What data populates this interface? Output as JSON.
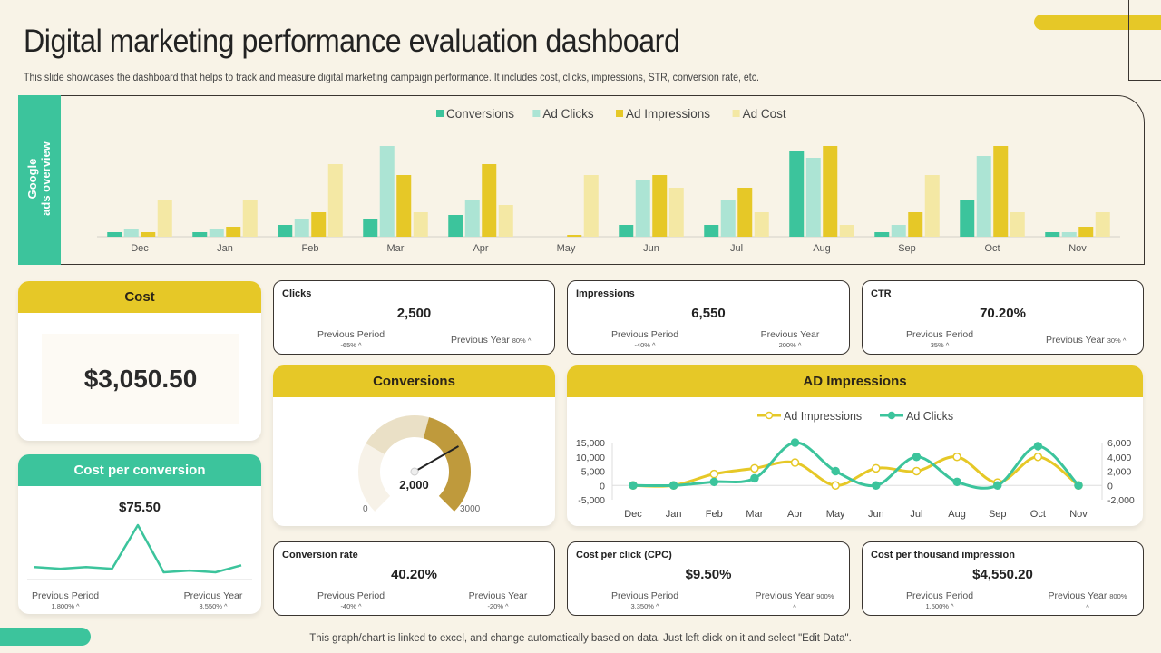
{
  "header": {
    "title": "Digital marketing performance evaluation dashboard",
    "subtitle": "This slide showcases the dashboard that helps to track and measure digital marketing campaign performance. It includes cost, clicks, impressions, STR, conversion rate, etc."
  },
  "footer": "This graph/chart is linked to excel,  and change automatically based on data. Just left click on it and select \"Edit Data\".",
  "colors": {
    "green": "#3cc49c",
    "light_green": "#ace4d4",
    "yellow": "#e6c827",
    "light_yellow": "#f4e8a4",
    "background": "#f8f3e7",
    "gauge_fill": "#bf9a3c",
    "gauge_mid": "#eae0c6",
    "gauge_light": "#f7f2e8"
  },
  "ads_overview": {
    "side_label_line1": "Google",
    "side_label_line2": "ads overview"
  },
  "chart_data": [
    {
      "type": "bar",
      "title": "Google ads overview",
      "legend_position": "top-center",
      "categories": [
        "Dec",
        "Jan",
        "Feb",
        "Mar",
        "Apr",
        "May",
        "Jun",
        "Jul",
        "Aug",
        "Sep",
        "Oct",
        "Nov"
      ],
      "series": [
        {
          "name": "Conversions",
          "color": "#3cc49c",
          "values": [
            5,
            5,
            13,
            19,
            24,
            0,
            13,
            13,
            95,
            5,
            40,
            5
          ]
        },
        {
          "name": "Ad Clicks",
          "color": "#ace4d4",
          "values": [
            8,
            8,
            19,
            100,
            40,
            0,
            62,
            40,
            87,
            13,
            89,
            5
          ]
        },
        {
          "name": "Ad Impressions",
          "color": "#e6c827",
          "values": [
            5,
            11,
            27,
            68,
            80,
            2,
            68,
            54,
            100,
            27,
            100,
            11
          ]
        },
        {
          "name": "Ad Cost",
          "color": "#f4e8a4",
          "values": [
            40,
            40,
            80,
            27,
            35,
            68,
            54,
            27,
            13,
            68,
            27,
            27
          ]
        }
      ],
      "ylim": [
        0,
        100
      ],
      "grid": false
    },
    {
      "type": "line",
      "title": "AD Impressions",
      "legend_position": "top-center",
      "categories": [
        "Dec",
        "Jan",
        "Feb",
        "Mar",
        "Apr",
        "May",
        "Jun",
        "Jul",
        "Aug",
        "Sep",
        "Oct",
        "Nov"
      ],
      "left_axis": {
        "ticks": [
          "15,000",
          "10,000",
          "5,000",
          "0",
          "-5,000"
        ],
        "ylim": [
          -5000,
          15000
        ]
      },
      "right_axis": {
        "ticks": [
          "6,000",
          "4,000",
          "2,000",
          "0",
          "-2,000"
        ],
        "ylim": [
          -2000,
          6000
        ]
      },
      "series": [
        {
          "name": "Ad Impressions",
          "axis": "left",
          "color": "#e6c827",
          "marker": "hollow",
          "values": [
            0,
            0,
            4000,
            6000,
            8000,
            0,
            6000,
            5000,
            10000,
            1000,
            10000,
            0
          ]
        },
        {
          "name": "Ad Clicks",
          "axis": "right",
          "color": "#3cc49c",
          "marker": "filled",
          "values": [
            0,
            0,
            500,
            1000,
            6000,
            2000,
            0,
            4000,
            500,
            0,
            5500,
            0
          ]
        }
      ]
    },
    {
      "type": "line",
      "title": "Cost per conversion sparkline",
      "values": [
        3,
        2,
        3,
        2,
        27,
        0,
        1,
        0,
        4
      ]
    },
    {
      "type": "gauge",
      "title": "Conversions",
      "value": 2000,
      "value_label": "2,000",
      "min": 0,
      "max": 3000,
      "min_label": "0",
      "max_label": "3000"
    }
  ],
  "cost_card": {
    "title": "Cost",
    "value": "$3,050.50"
  },
  "cpc_card": {
    "title": "Cost per conversion",
    "value": "$75.50",
    "prev_period_label": "Previous Period",
    "prev_period_value": "1,800% ^",
    "prev_year_label": "Previous Year",
    "prev_year_value": "3,550% ^"
  },
  "conversions_card": {
    "title": "Conversions"
  },
  "ad_impressions_card": {
    "title": "AD Impressions"
  },
  "kpis": {
    "clicks": {
      "title": "Clicks",
      "value": "2,500",
      "prev_period_label": "Previous Period",
      "prev_period_value": "-65% ^",
      "prev_year_label": "Previous Year",
      "prev_year_value": "80% ^"
    },
    "impressions": {
      "title": "Impressions",
      "value": "6,550",
      "prev_period_label": "Previous Period",
      "prev_period_value": "-40% ^",
      "prev_year_label": "Previous Year",
      "prev_year_value": "200% ^"
    },
    "ctr": {
      "title": "CTR",
      "value": "70.20%",
      "prev_period_label": "Previous Period",
      "prev_period_value": "35% ^",
      "prev_year_label": "Previous Year",
      "prev_year_value": "30% ^"
    },
    "conversion_rate": {
      "title": "Conversion rate",
      "value": "40.20%",
      "prev_period_label": "Previous Period",
      "prev_period_value": "-40% ^",
      "prev_year_label": "Previous Year",
      "prev_year_value": "-20% ^"
    },
    "cpc": {
      "title": "Cost per click (CPC)",
      "value": "$9.50%",
      "prev_period_label": "Previous Period",
      "prev_period_value": "3,350% ^",
      "prev_year_label": "Previous Year",
      "prev_year_value": "900%",
      "prev_year_caret": "^"
    },
    "cpm": {
      "title": "Cost per thousand impression",
      "value": "$4,550.20",
      "prev_period_label": "Previous Period",
      "prev_period_value": "1,500% ^",
      "prev_year_label": "Previous Year",
      "prev_year_value": "800%",
      "prev_year_caret": "^"
    }
  }
}
